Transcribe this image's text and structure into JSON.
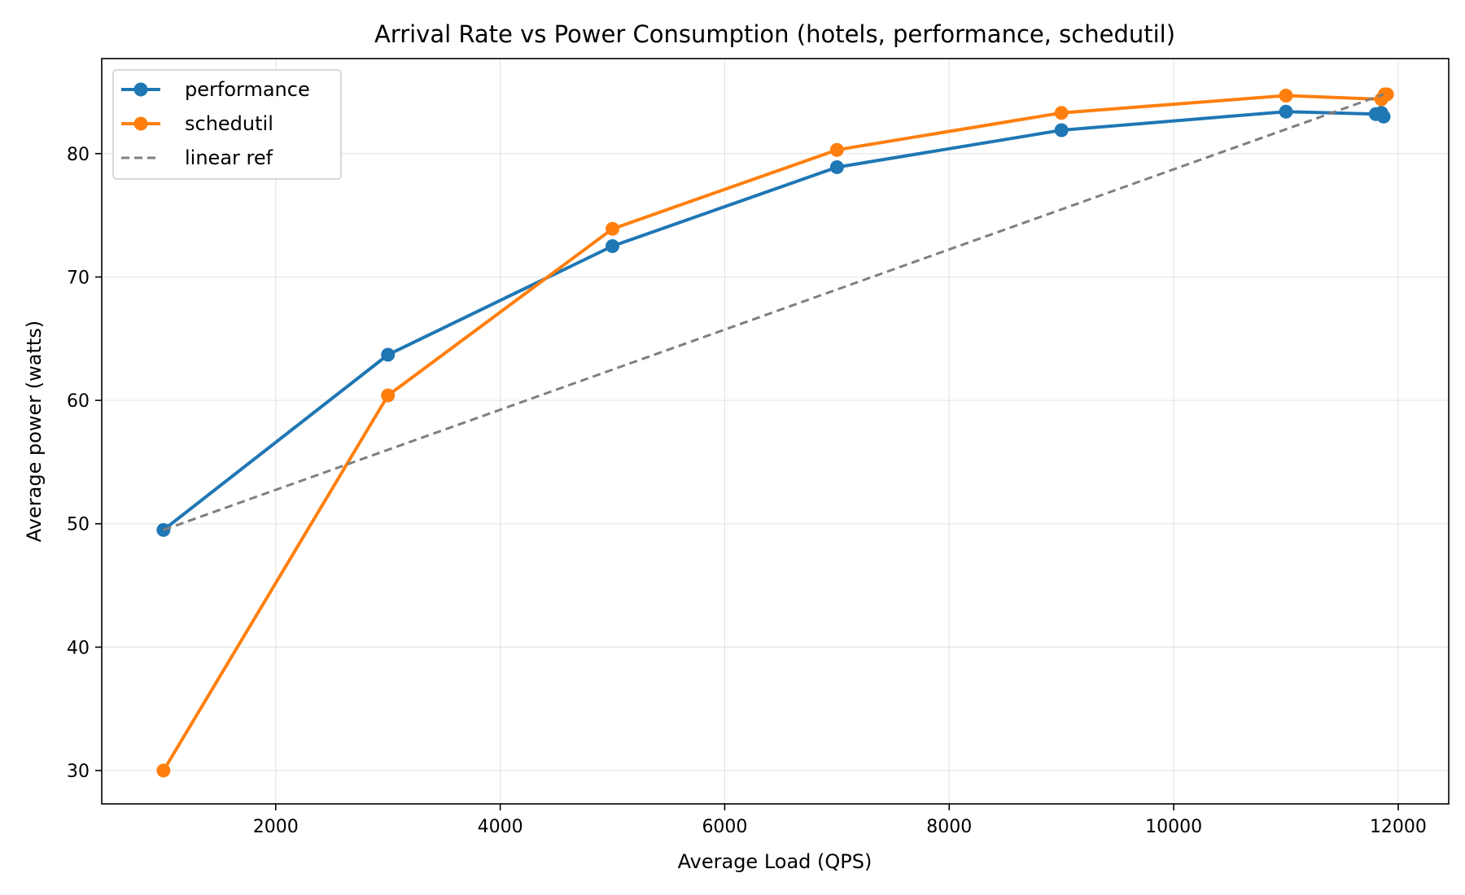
{
  "chart_data": {
    "type": "line",
    "title": "Arrival Rate vs Power Consumption (hotels, performance, schedutil)",
    "xlabel": "Average Load (QPS)",
    "ylabel": "Average power (watts)",
    "xlim": [
      450,
      12450
    ],
    "ylim": [
      27.3,
      87.7
    ],
    "xticks": [
      2000,
      4000,
      6000,
      8000,
      10000,
      12000
    ],
    "yticks": [
      30,
      40,
      50,
      60,
      70,
      80
    ],
    "grid": true,
    "legend_position": "top-left",
    "series": [
      {
        "name": "performance",
        "color": "#1f77b4",
        "style": "solid",
        "marker": "circle",
        "x": [
          1000,
          3000,
          5000,
          7000,
          9000,
          11000,
          11800,
          11850,
          11870
        ],
        "y": [
          49.5,
          63.7,
          72.5,
          78.9,
          81.9,
          83.4,
          83.2,
          83.3,
          83.0
        ]
      },
      {
        "name": "schedutil",
        "color": "#ff7f0e",
        "style": "solid",
        "marker": "circle",
        "x": [
          1000,
          3000,
          5000,
          7000,
          9000,
          11000,
          11850,
          11880,
          11900
        ],
        "y": [
          30.0,
          60.4,
          73.9,
          80.3,
          83.3,
          84.7,
          84.4,
          84.8,
          84.8
        ]
      },
      {
        "name": "linear ref",
        "color": "#7f7f7f",
        "style": "dashed",
        "marker": "none",
        "x": [
          1000,
          11870
        ],
        "y": [
          49.5,
          84.8
        ]
      }
    ]
  }
}
